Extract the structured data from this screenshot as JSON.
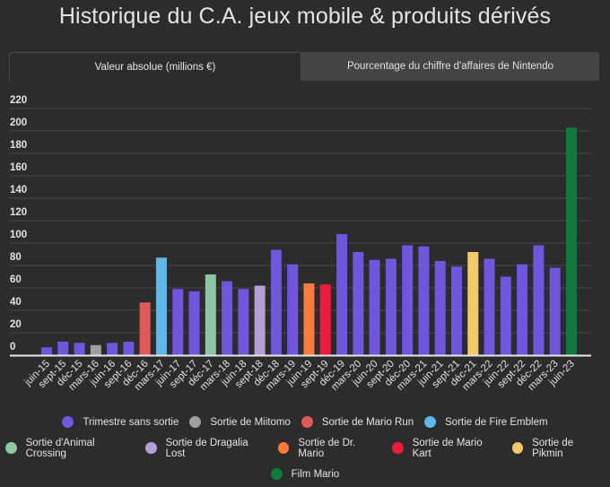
{
  "title": "Historique du C.A. jeux mobile & produits dérivés",
  "tabs": [
    {
      "label": "Valeur absolue (millions €)",
      "active": true
    },
    {
      "label": "Pourcentage du chiffre d'affaires de Nintendo",
      "active": false
    }
  ],
  "chart_data": {
    "type": "bar",
    "title": "Historique du C.A. jeux mobile & produits dérivés",
    "xlabel": "",
    "ylabel": "Valeur absolue (millions €)",
    "ylim": [
      0,
      220
    ],
    "yticks": [
      0,
      20,
      40,
      60,
      80,
      100,
      120,
      140,
      160,
      180,
      200,
      220
    ],
    "grid": true,
    "legend_position": "bottom",
    "categories": [
      "juin-15",
      "sept-15",
      "déc-15",
      "mars-16",
      "juin-16",
      "sept-16",
      "déc-16",
      "mars-17",
      "juin-17",
      "sept-17",
      "déc-17",
      "mars-18",
      "juin-18",
      "sept-18",
      "déc-18",
      "mars-19",
      "juin-19",
      "sept-19",
      "déc-19",
      "mars-20",
      "juin-20",
      "sept-20",
      "déc-20",
      "mars-21",
      "juin-21",
      "sept-21",
      "déc-21",
      "mars-22",
      "juin-22",
      "sept-22",
      "déc-22",
      "mars-23",
      "juin-23"
    ],
    "values": [
      7,
      12,
      11,
      9,
      11,
      12,
      47,
      87,
      59,
      57,
      72,
      66,
      59,
      62,
      94,
      81,
      64,
      63,
      108,
      92,
      85,
      86,
      98,
      97,
      84,
      79,
      92,
      86,
      70,
      81,
      98,
      78,
      203
    ],
    "series_index": [
      0,
      0,
      0,
      1,
      0,
      0,
      2,
      3,
      0,
      0,
      4,
      0,
      0,
      5,
      0,
      0,
      6,
      7,
      0,
      0,
      0,
      0,
      0,
      0,
      0,
      0,
      8,
      0,
      0,
      0,
      0,
      0,
      9
    ],
    "series": [
      {
        "name": "Trimestre sans sortie",
        "color": "#7055dd"
      },
      {
        "name": "Sortie de Miitomo",
        "color": "#9e9e9e"
      },
      {
        "name": "Sortie de Mario Run",
        "color": "#e05a5a"
      },
      {
        "name": "Sortie de Fire Emblem",
        "color": "#5db8e8"
      },
      {
        "name": "Sortie d'Animal Crossing",
        "color": "#8cc6a4"
      },
      {
        "name": "Sortie de Dragalia Lost",
        "color": "#b49fd6"
      },
      {
        "name": "Sortie de Dr. Mario",
        "color": "#ff7a3d"
      },
      {
        "name": "Sortie de Mario Kart",
        "color": "#ee1c3a"
      },
      {
        "name": "Sortie de Pikmin",
        "color": "#f2c96a"
      },
      {
        "name": "Film Mario",
        "color": "#0f7a3c"
      }
    ]
  }
}
